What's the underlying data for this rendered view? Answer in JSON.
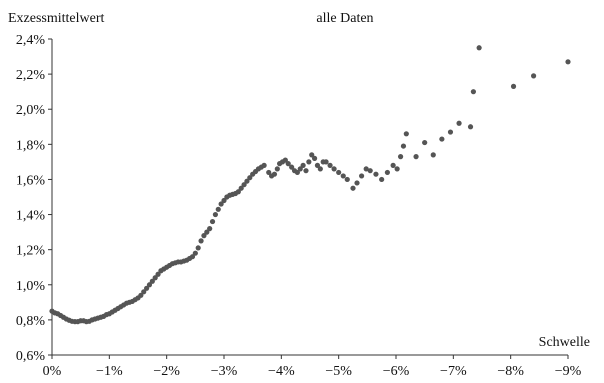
{
  "chart_data": {
    "type": "scatter",
    "title": "alle Daten",
    "ylabel": "Exzessmittelwert",
    "xlabel": "Schwelle",
    "xlim": [
      0,
      -9
    ],
    "ylim": [
      0.6,
      2.4
    ],
    "grid": false,
    "x_ticks": [
      0,
      -1,
      -2,
      -3,
      -4,
      -5,
      -6,
      -7,
      -8,
      -9
    ],
    "x_tick_labels": [
      "0%",
      "−1%",
      "−2%",
      "−3%",
      "−4%",
      "−5%",
      "−6%",
      "−7%",
      "−8%",
      "−9%"
    ],
    "y_ticks": [
      0.6,
      0.8,
      1.0,
      1.2,
      1.4,
      1.6,
      1.8,
      2.0,
      2.2,
      2.4
    ],
    "y_tick_labels": [
      "0,6%",
      "0,8%",
      "1,0%",
      "1,2%",
      "1,4%",
      "1,6%",
      "1,8%",
      "2,0%",
      "2,2%",
      "2,4%"
    ],
    "color": "#555555",
    "series": [
      {
        "points": [
          [
            0.0,
            0.85
          ],
          [
            -0.05,
            0.84
          ],
          [
            -0.1,
            0.835
          ],
          [
            -0.15,
            0.825
          ],
          [
            -0.2,
            0.815
          ],
          [
            -0.25,
            0.805
          ],
          [
            -0.3,
            0.798
          ],
          [
            -0.35,
            0.792
          ],
          [
            -0.4,
            0.79
          ],
          [
            -0.45,
            0.79
          ],
          [
            -0.5,
            0.795
          ],
          [
            -0.55,
            0.795
          ],
          [
            -0.6,
            0.79
          ],
          [
            -0.65,
            0.792
          ],
          [
            -0.7,
            0.8
          ],
          [
            -0.75,
            0.805
          ],
          [
            -0.8,
            0.81
          ],
          [
            -0.85,
            0.815
          ],
          [
            -0.9,
            0.82
          ],
          [
            -0.95,
            0.83
          ],
          [
            -1.0,
            0.835
          ],
          [
            -1.05,
            0.845
          ],
          [
            -1.1,
            0.855
          ],
          [
            -1.15,
            0.865
          ],
          [
            -1.2,
            0.875
          ],
          [
            -1.25,
            0.885
          ],
          [
            -1.3,
            0.895
          ],
          [
            -1.35,
            0.9
          ],
          [
            -1.4,
            0.905
          ],
          [
            -1.45,
            0.915
          ],
          [
            -1.5,
            0.925
          ],
          [
            -1.55,
            0.94
          ],
          [
            -1.6,
            0.96
          ],
          [
            -1.65,
            0.98
          ],
          [
            -1.7,
            1.0
          ],
          [
            -1.75,
            1.02
          ],
          [
            -1.8,
            1.04
          ],
          [
            -1.85,
            1.06
          ],
          [
            -1.9,
            1.08
          ],
          [
            -1.95,
            1.09
          ],
          [
            -2.0,
            1.1
          ],
          [
            -2.05,
            1.11
          ],
          [
            -2.1,
            1.12
          ],
          [
            -2.15,
            1.125
          ],
          [
            -2.2,
            1.13
          ],
          [
            -2.25,
            1.13
          ],
          [
            -2.3,
            1.135
          ],
          [
            -2.35,
            1.14
          ],
          [
            -2.4,
            1.15
          ],
          [
            -2.45,
            1.16
          ],
          [
            -2.5,
            1.18
          ],
          [
            -2.55,
            1.21
          ],
          [
            -2.6,
            1.25
          ],
          [
            -2.65,
            1.28
          ],
          [
            -2.7,
            1.3
          ],
          [
            -2.75,
            1.32
          ],
          [
            -2.8,
            1.36
          ],
          [
            -2.85,
            1.4
          ],
          [
            -2.9,
            1.43
          ],
          [
            -2.95,
            1.46
          ],
          [
            -3.0,
            1.48
          ],
          [
            -3.05,
            1.5
          ],
          [
            -3.1,
            1.51
          ],
          [
            -3.15,
            1.515
          ],
          [
            -3.2,
            1.52
          ],
          [
            -3.25,
            1.53
          ],
          [
            -3.3,
            1.55
          ],
          [
            -3.35,
            1.57
          ],
          [
            -3.4,
            1.59
          ],
          [
            -3.45,
            1.61
          ],
          [
            -3.5,
            1.63
          ],
          [
            -3.55,
            1.645
          ],
          [
            -3.6,
            1.66
          ],
          [
            -3.65,
            1.67
          ],
          [
            -3.7,
            1.68
          ],
          [
            -3.78,
            1.64
          ],
          [
            -3.83,
            1.62
          ],
          [
            -3.88,
            1.63
          ],
          [
            -3.93,
            1.66
          ],
          [
            -3.97,
            1.69
          ],
          [
            -4.02,
            1.7
          ],
          [
            -4.07,
            1.71
          ],
          [
            -4.12,
            1.69
          ],
          [
            -4.18,
            1.67
          ],
          [
            -4.23,
            1.65
          ],
          [
            -4.28,
            1.64
          ],
          [
            -4.33,
            1.66
          ],
          [
            -4.38,
            1.68
          ],
          [
            -4.43,
            1.65
          ],
          [
            -4.48,
            1.7
          ],
          [
            -4.53,
            1.74
          ],
          [
            -4.58,
            1.72
          ],
          [
            -4.63,
            1.68
          ],
          [
            -4.68,
            1.66
          ],
          [
            -4.73,
            1.7
          ],
          [
            -4.78,
            1.7
          ],
          [
            -4.85,
            1.68
          ],
          [
            -4.92,
            1.66
          ],
          [
            -5.0,
            1.64
          ],
          [
            -5.08,
            1.62
          ],
          [
            -5.15,
            1.6
          ],
          [
            -5.25,
            1.55
          ],
          [
            -5.32,
            1.58
          ],
          [
            -5.4,
            1.62
          ],
          [
            -5.48,
            1.66
          ],
          [
            -5.55,
            1.65
          ],
          [
            -5.65,
            1.63
          ],
          [
            -5.75,
            1.6
          ],
          [
            -5.85,
            1.64
          ],
          [
            -5.95,
            1.68
          ],
          [
            -6.02,
            1.66
          ],
          [
            -6.08,
            1.73
          ],
          [
            -6.13,
            1.79
          ],
          [
            -6.18,
            1.86
          ],
          [
            -6.35,
            1.73
          ],
          [
            -6.5,
            1.81
          ],
          [
            -6.65,
            1.74
          ],
          [
            -6.8,
            1.83
          ],
          [
            -6.95,
            1.87
          ],
          [
            -7.1,
            1.92
          ],
          [
            -7.3,
            1.9
          ],
          [
            -7.35,
            2.1
          ],
          [
            -7.45,
            2.35
          ],
          [
            -8.05,
            2.13
          ],
          [
            -8.4,
            2.19
          ],
          [
            -9.0,
            2.27
          ]
        ]
      }
    ]
  }
}
